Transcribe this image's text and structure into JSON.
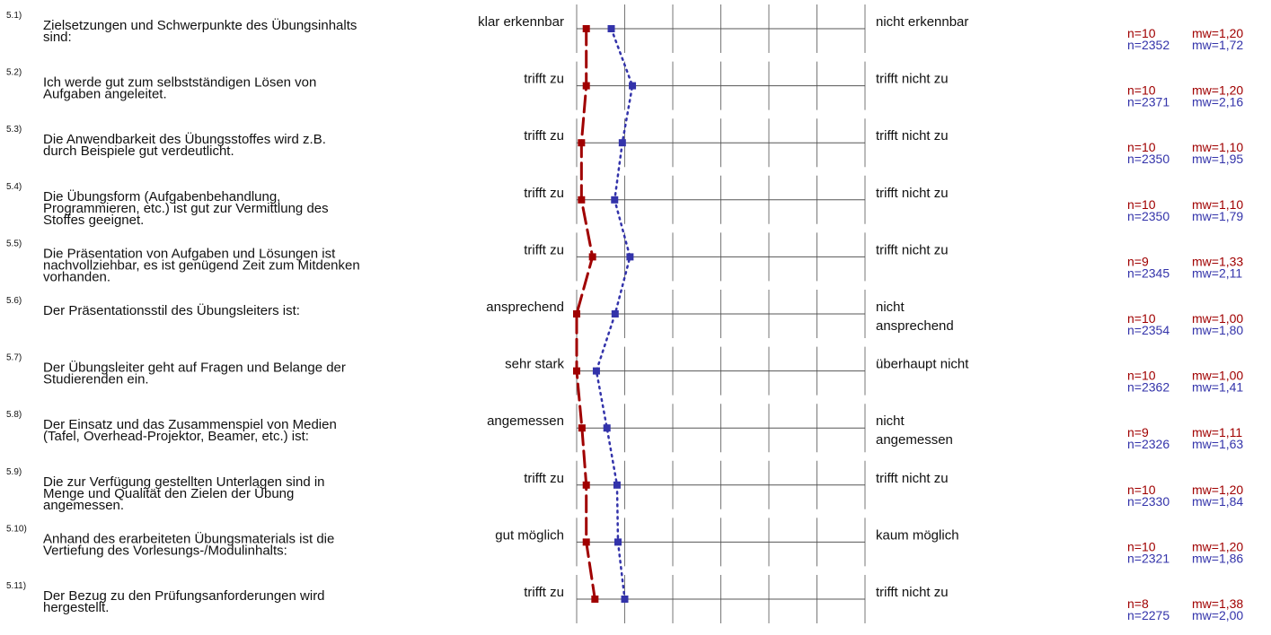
{
  "chart_data": {
    "type": "line",
    "scale": {
      "min": 1,
      "max": 7,
      "ticks": [
        1,
        2,
        3,
        4,
        5,
        6,
        7
      ]
    },
    "colors": {
      "course": "#a00000",
      "reference": "#3333aa"
    },
    "items": [
      {
        "id": "5.1)",
        "question": [
          "Zielsetzungen und Schwerpunkte des Übungsinhalts",
          "sind:"
        ],
        "left": [
          "klar erkennbar"
        ],
        "right": [
          "nicht erkennbar"
        ],
        "course": {
          "n": "n=10",
          "mw": "mw=1,20",
          "value": 1.2
        },
        "reference": {
          "n": "n=2352",
          "mw": "mw=1,72",
          "value": 1.72
        }
      },
      {
        "id": "5.2)",
        "question": [
          "Ich werde gut zum selbstständigen Lösen von",
          "Aufgaben angeleitet."
        ],
        "left": [
          "trifft zu"
        ],
        "right": [
          "trifft nicht zu"
        ],
        "course": {
          "n": "n=10",
          "mw": "mw=1,20",
          "value": 1.2
        },
        "reference": {
          "n": "n=2371",
          "mw": "mw=2,16",
          "value": 2.16
        }
      },
      {
        "id": "5.3)",
        "question": [
          "Die Anwendbarkeit des Übungsstoffes wird z.B.",
          "durch Beispiele gut verdeutlicht."
        ],
        "left": [
          "trifft zu"
        ],
        "right": [
          "trifft nicht zu"
        ],
        "course": {
          "n": "n=10",
          "mw": "mw=1,10",
          "value": 1.1
        },
        "reference": {
          "n": "n=2350",
          "mw": "mw=1,95",
          "value": 1.95
        }
      },
      {
        "id": "5.4)",
        "question": [
          "Die Übungsform (Aufgabenbehandlung,",
          "Programmieren, etc.) ist gut zur Vermittlung des",
          "Stoffes geeignet."
        ],
        "left": [
          "trifft zu"
        ],
        "right": [
          "trifft nicht zu"
        ],
        "course": {
          "n": "n=10",
          "mw": "mw=1,10",
          "value": 1.1
        },
        "reference": {
          "n": "n=2350",
          "mw": "mw=1,79",
          "value": 1.79
        }
      },
      {
        "id": "5.5)",
        "question": [
          "Die Präsentation von Aufgaben und Lösungen ist",
          "nachvollziehbar, es ist genügend Zeit zum Mitdenken",
          "vorhanden."
        ],
        "left": [
          "trifft zu"
        ],
        "right": [
          "trifft nicht zu"
        ],
        "course": {
          "n": "n=9",
          "mw": "mw=1,33",
          "value": 1.33
        },
        "reference": {
          "n": "n=2345",
          "mw": "mw=2,11",
          "value": 2.11
        }
      },
      {
        "id": "5.6)",
        "question": [
          "Der Präsentationsstil des Übungsleiters ist:"
        ],
        "left": [
          "ansprechend"
        ],
        "right": [
          "nicht",
          "ansprechend"
        ],
        "course": {
          "n": "n=10",
          "mw": "mw=1,00",
          "value": 1.0
        },
        "reference": {
          "n": "n=2354",
          "mw": "mw=1,80",
          "value": 1.8
        }
      },
      {
        "id": "5.7)",
        "question": [
          "Der Übungsleiter geht auf Fragen und Belange der",
          "Studierenden ein."
        ],
        "left": [
          "sehr stark"
        ],
        "right": [
          "überhaupt nicht"
        ],
        "course": {
          "n": "n=10",
          "mw": "mw=1,00",
          "value": 1.0
        },
        "reference": {
          "n": "n=2362",
          "mw": "mw=1,41",
          "value": 1.41
        }
      },
      {
        "id": "5.8)",
        "question": [
          "Der Einsatz und das Zusammenspiel von Medien",
          "(Tafel, Overhead-Projektor, Beamer, etc.) ist:"
        ],
        "left": [
          "angemessen"
        ],
        "right": [
          "nicht",
          "angemessen"
        ],
        "course": {
          "n": "n=9",
          "mw": "mw=1,11",
          "value": 1.11
        },
        "reference": {
          "n": "n=2326",
          "mw": "mw=1,63",
          "value": 1.63
        }
      },
      {
        "id": "5.9)",
        "question": [
          "Die zur Verfügung gestellten Unterlagen sind in",
          "Menge und Qualität den Zielen der Übung",
          "angemessen."
        ],
        "left": [
          "trifft zu"
        ],
        "right": [
          "trifft nicht zu"
        ],
        "course": {
          "n": "n=10",
          "mw": "mw=1,20",
          "value": 1.2
        },
        "reference": {
          "n": "n=2330",
          "mw": "mw=1,84",
          "value": 1.84
        }
      },
      {
        "id": "5.10)",
        "question": [
          "Anhand des erarbeiteten Übungsmaterials ist die",
          "Vertiefung des Vorlesungs-/Modulinhalts:"
        ],
        "left": [
          "gut möglich"
        ],
        "right": [
          "kaum möglich"
        ],
        "course": {
          "n": "n=10",
          "mw": "mw=1,20",
          "value": 1.2
        },
        "reference": {
          "n": "n=2321",
          "mw": "mw=1,86",
          "value": 1.86
        }
      },
      {
        "id": "5.11)",
        "question": [
          "Der Bezug zu den Prüfungsanforderungen wird",
          "hergestellt."
        ],
        "left": [
          "trifft zu"
        ],
        "right": [
          "trifft nicht zu"
        ],
        "course": {
          "n": "n=8",
          "mw": "mw=1,38",
          "value": 1.38
        },
        "reference": {
          "n": "n=2275",
          "mw": "mw=2,00",
          "value": 2.0
        }
      }
    ]
  }
}
